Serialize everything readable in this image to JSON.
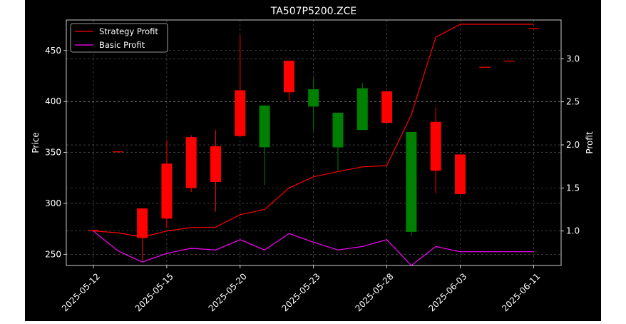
{
  "chart_data": {
    "type": "candlestick",
    "title": "TA507P5200.ZCE",
    "ylabel_left": "Price",
    "ylabel_right": "Profit",
    "x_tick_labels": [
      "2025-05-12",
      "2025-05-15",
      "2025-05-20",
      "2025-05-23",
      "2025-05-28",
      "2025-06-03",
      "2025-06-11"
    ],
    "y_left_ticks": [
      250,
      300,
      350,
      400,
      450
    ],
    "y_right_ticks": [
      1.0,
      1.5,
      2.0,
      2.5,
      3.0
    ],
    "y_right_tick_labels": [
      "1.0",
      "1.5",
      "2.0",
      "2.5",
      "3.0"
    ],
    "ylim_left": [
      239,
      480
    ],
    "ylim_right": [
      0.6,
      3.45
    ],
    "grid": true,
    "legend_position": "top-left",
    "colors": {
      "up": "#008000",
      "down": "#ff0000",
      "strategy": "#ff0000",
      "basic": "#ff00ff",
      "background": "#000000",
      "text": "#ffffff"
    },
    "candles": [
      {
        "date": "2025-05-12",
        "open": 274,
        "high": 274,
        "low": 274,
        "close": 274
      },
      {
        "date": "2025-05-13",
        "open": 351,
        "high": 351,
        "low": 351,
        "close": 351
      },
      {
        "date": "2025-05-14",
        "open": 295,
        "high": 295,
        "low": 244,
        "close": 266
      },
      {
        "date": "2025-05-15",
        "open": 339,
        "high": 362,
        "low": 276,
        "close": 285
      },
      {
        "date": "2025-05-16",
        "open": 365,
        "high": 367,
        "low": 311,
        "close": 315
      },
      {
        "date": "2025-05-19",
        "open": 356,
        "high": 372,
        "low": 292,
        "close": 321
      },
      {
        "date": "2025-05-20",
        "open": 411,
        "high": 465,
        "low": 366,
        "close": 366
      },
      {
        "date": "2025-05-21",
        "open": 355,
        "high": 396,
        "low": 318,
        "close": 396
      },
      {
        "date": "2025-05-22",
        "open": 440,
        "high": 440,
        "low": 401,
        "close": 409
      },
      {
        "date": "2025-05-23",
        "open": 395,
        "high": 423,
        "low": 371,
        "close": 412
      },
      {
        "date": "2025-05-26",
        "open": 355,
        "high": 389,
        "low": 332,
        "close": 389
      },
      {
        "date": "2025-05-27",
        "open": 372,
        "high": 418,
        "low": 372,
        "close": 413
      },
      {
        "date": "2025-05-28",
        "open": 410,
        "high": 410,
        "low": 379,
        "close": 379
      },
      {
        "date": "2025-05-29",
        "open": 272,
        "high": 370,
        "low": 268,
        "close": 370
      },
      {
        "date": "2025-05-30",
        "open": 380,
        "high": 394,
        "low": 310,
        "close": 332
      },
      {
        "date": "2025-06-03",
        "open": 348,
        "high": 348,
        "low": 309,
        "close": 309
      },
      {
        "date": "2025-06-04",
        "open": 434,
        "high": 434,
        "low": 434,
        "close": 434
      },
      {
        "date": "2025-06-05",
        "open": 440,
        "high": 440,
        "low": 440,
        "close": 440
      },
      {
        "date": "2025-06-11",
        "open": 472,
        "high": 472,
        "low": 472,
        "close": 472
      }
    ],
    "series": [
      {
        "name": "Strategy Profit",
        "values": [
          1.0,
          0.98,
          0.93,
          1.0,
          1.04,
          1.045,
          1.19,
          1.25,
          1.5,
          1.63,
          1.69,
          1.745,
          1.76,
          2.35,
          3.25,
          3.4,
          3.4,
          3.4,
          3.4
        ]
      },
      {
        "name": "Basic Profit",
        "values": [
          1.0,
          0.77,
          0.64,
          0.74,
          0.8,
          0.78,
          0.9,
          0.78,
          0.97,
          0.87,
          0.78,
          0.82,
          0.9,
          0.6,
          0.82,
          0.76,
          0.76,
          0.76,
          0.76
        ]
      }
    ]
  }
}
